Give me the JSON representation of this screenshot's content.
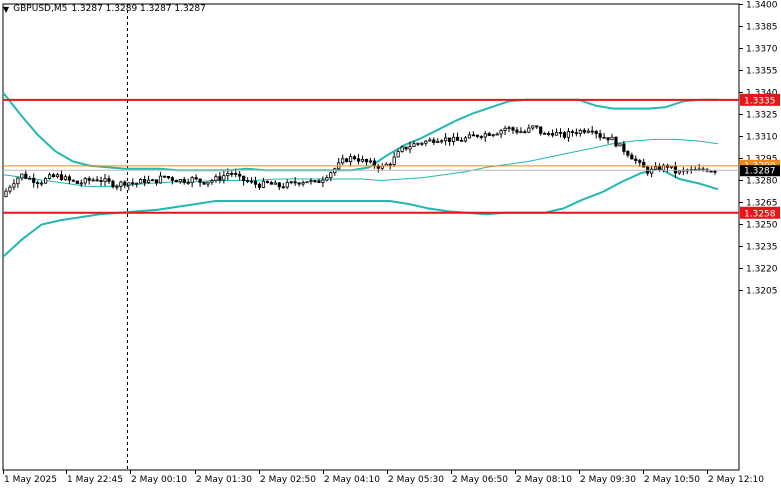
{
  "header": {
    "symbol_label": "GBPUSD,M5",
    "ohlc_values": "1.3287 1.3289 1.3287 1.3287",
    "menu_icon": "triangle-down-icon"
  },
  "chart_data": {
    "type": "candlestick",
    "title": "GBPUSD,M5",
    "ylim": [
      1.32,
      1.34
    ],
    "y_ticks": [
      "1.3400",
      "1.3385",
      "1.3370",
      "1.3355",
      "1.3340",
      "1.3325",
      "1.3310",
      "1.3295",
      "1.3280",
      "1.3265",
      "1.3250",
      "1.3235",
      "1.3220",
      "1.3205"
    ],
    "x_ticks": [
      "1 May 2025",
      "1 May 22:45",
      "2 May 00:10",
      "2 May 01:30",
      "2 May 02:50",
      "2 May 04:10",
      "2 May 05:30",
      "2 May 06:50",
      "2 May 08:10",
      "2 May 09:30",
      "2 May 10:50",
      "2 May 12:10"
    ],
    "levels": [
      {
        "label": "1.3335",
        "value": 1.3335,
        "color": "#e8141a"
      },
      {
        "label": "1.3258",
        "value": 1.3258,
        "color": "#e8141a"
      }
    ],
    "markers": [
      {
        "label": "1.3290",
        "value": 1.329,
        "color": "#f08a16",
        "kind": "line"
      },
      {
        "label": "1.3287",
        "value": 1.3287,
        "color": "#000000",
        "kind": "bid"
      }
    ],
    "ohlc_path": [
      1.3269,
      1.3278,
      1.3284,
      1.3281,
      1.3279,
      1.3282,
      1.3283,
      1.328,
      1.3278,
      1.328,
      1.3281,
      1.3279,
      1.3277,
      1.3279,
      1.3278,
      1.328,
      1.3279,
      1.3283,
      1.3281,
      1.328,
      1.3281,
      1.3279,
      1.328,
      1.3282,
      1.3286,
      1.3281,
      1.3279,
      1.3277,
      1.3278,
      1.3276,
      1.3277,
      1.3279,
      1.328,
      1.3278,
      1.3283,
      1.3288,
      1.3294,
      1.3296,
      1.3293,
      1.3291,
      1.3289,
      1.3293,
      1.3301,
      1.3304,
      1.3306,
      1.3307,
      1.3309,
      1.3308,
      1.3307,
      1.3309,
      1.3311,
      1.3312,
      1.3313,
      1.3316,
      1.3314,
      1.3313,
      1.3317,
      1.3311,
      1.3313,
      1.331,
      1.3313,
      1.3314,
      1.3316,
      1.331,
      1.3309,
      1.3303,
      1.3298,
      1.3291,
      1.3286,
      1.3288,
      1.329,
      1.3285,
      1.3287,
      1.3286,
      1.3288,
      1.3287
    ],
    "band_upper": [
      1.334,
      1.3325,
      1.3311,
      1.33,
      1.3293,
      1.329,
      1.3289,
      1.3288,
      1.3288,
      1.3288,
      1.3287,
      1.3287,
      1.3287,
      1.3287,
      1.3288,
      1.3287,
      1.3287,
      1.3287,
      1.3287,
      1.3287,
      1.3287,
      1.3289,
      1.3297,
      1.3304,
      1.3309,
      1.3315,
      1.3321,
      1.3326,
      1.333,
      1.3334,
      1.3335,
      1.3335,
      1.3335,
      1.3335,
      1.3331,
      1.3329,
      1.3329,
      1.3329,
      1.333,
      1.3334,
      1.3335,
      1.3335
    ],
    "band_middle": [
      1.3284,
      1.3282,
      1.328,
      1.3278,
      1.3276,
      1.3276,
      1.3277,
      1.3278,
      1.3279,
      1.3279,
      1.328,
      1.328,
      1.328,
      1.3281,
      1.3281,
      1.3281,
      1.3281,
      1.3281,
      1.328,
      1.3281,
      1.3282,
      1.3284,
      1.3286,
      1.3289,
      1.3291,
      1.3293,
      1.3296,
      1.3299,
      1.3302,
      1.3305,
      1.3307,
      1.3308,
      1.3308,
      1.3307,
      1.3305
    ],
    "band_lower": [
      1.3228,
      1.324,
      1.325,
      1.3253,
      1.3255,
      1.3257,
      1.3258,
      1.3259,
      1.326,
      1.3262,
      1.3264,
      1.3266,
      1.3266,
      1.3266,
      1.3266,
      1.3266,
      1.3266,
      1.3266,
      1.3266,
      1.3266,
      1.3266,
      1.3264,
      1.3261,
      1.3259,
      1.3258,
      1.3257,
      1.3258,
      1.3258,
      1.3258,
      1.3261,
      1.3267,
      1.3272,
      1.3279,
      1.3285,
      1.3288,
      1.3281,
      1.3278,
      1.3274
    ]
  }
}
